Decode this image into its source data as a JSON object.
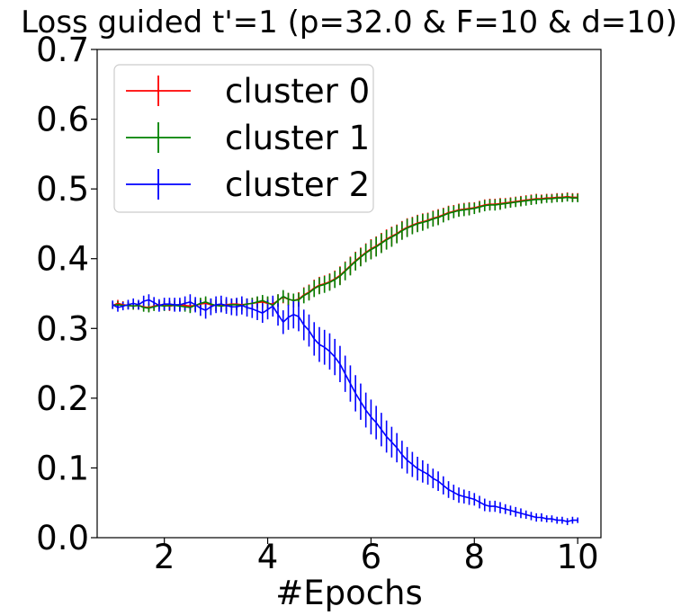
{
  "chart_data": {
    "type": "line",
    "title": "Loss guided t'=1  (p=32.0 & F=10 & d=10)",
    "xlabel": "#Epochs",
    "ylabel": "",
    "xlim": [
      0.7,
      10.45
    ],
    "ylim": [
      0.0,
      0.7
    ],
    "xticks": [
      2,
      4,
      6,
      8,
      10
    ],
    "yticks": [
      0.0,
      0.1,
      0.2,
      0.3,
      0.4,
      0.5,
      0.6,
      0.7
    ],
    "xtick_labels": [
      "2",
      "4",
      "6",
      "8",
      "10"
    ],
    "ytick_labels": [
      "0.0",
      "0.1",
      "0.2",
      "0.3",
      "0.4",
      "0.5",
      "0.6",
      "0.7"
    ],
    "grid": false,
    "legend_position": "top-left",
    "x": [
      1.0,
      1.1,
      1.2,
      1.3,
      1.4,
      1.5,
      1.6,
      1.7,
      1.8,
      1.9,
      2.0,
      2.1,
      2.2,
      2.3,
      2.4,
      2.5,
      2.6,
      2.7,
      2.8,
      2.9,
      3.0,
      3.1,
      3.2,
      3.3,
      3.4,
      3.5,
      3.6,
      3.7,
      3.8,
      3.9,
      4.0,
      4.1,
      4.2,
      4.3,
      4.4,
      4.5,
      4.6,
      4.7,
      4.8,
      4.9,
      5.0,
      5.1,
      5.2,
      5.3,
      5.4,
      5.5,
      5.6,
      5.7,
      5.8,
      5.9,
      6.0,
      6.1,
      6.2,
      6.3,
      6.4,
      6.5,
      6.6,
      6.7,
      6.8,
      6.9,
      7.0,
      7.1,
      7.2,
      7.3,
      7.4,
      7.5,
      7.6,
      7.7,
      7.8,
      7.9,
      8.0,
      8.1,
      8.2,
      8.3,
      8.4,
      8.5,
      8.6,
      8.7,
      8.8,
      8.9,
      9.0,
      9.1,
      9.2,
      9.3,
      9.4,
      9.5,
      9.6,
      9.7,
      9.8,
      9.9,
      10.0
    ],
    "series": [
      {
        "name": "cluster 0",
        "color": "#ff0000",
        "values": [
          0.333,
          0.336,
          0.334,
          0.333,
          0.332,
          0.333,
          0.331,
          0.33,
          0.332,
          0.334,
          0.333,
          0.332,
          0.333,
          0.334,
          0.333,
          0.332,
          0.333,
          0.335,
          0.336,
          0.334,
          0.333,
          0.333,
          0.334,
          0.335,
          0.335,
          0.334,
          0.335,
          0.336,
          0.337,
          0.338,
          0.336,
          0.335,
          0.34,
          0.345,
          0.342,
          0.34,
          0.342,
          0.348,
          0.352,
          0.358,
          0.362,
          0.364,
          0.367,
          0.371,
          0.376,
          0.383,
          0.39,
          0.397,
          0.403,
          0.409,
          0.414,
          0.418,
          0.423,
          0.428,
          0.432,
          0.436,
          0.441,
          0.445,
          0.448,
          0.451,
          0.453,
          0.455,
          0.458,
          0.46,
          0.463,
          0.466,
          0.468,
          0.47,
          0.471,
          0.472,
          0.473,
          0.475,
          0.477,
          0.478,
          0.478,
          0.479,
          0.48,
          0.481,
          0.482,
          0.483,
          0.484,
          0.485,
          0.486,
          0.486,
          0.487,
          0.487,
          0.488,
          0.488,
          0.489,
          0.488,
          0.488
        ],
        "errors": [
          0.005,
          0.005,
          0.005,
          0.005,
          0.005,
          0.006,
          0.006,
          0.006,
          0.006,
          0.006,
          0.007,
          0.007,
          0.007,
          0.007,
          0.007,
          0.008,
          0.008,
          0.008,
          0.008,
          0.008,
          0.008,
          0.008,
          0.008,
          0.008,
          0.008,
          0.008,
          0.008,
          0.008,
          0.008,
          0.008,
          0.009,
          0.009,
          0.009,
          0.009,
          0.009,
          0.01,
          0.01,
          0.011,
          0.011,
          0.012,
          0.012,
          0.012,
          0.012,
          0.012,
          0.013,
          0.013,
          0.013,
          0.013,
          0.013,
          0.013,
          0.014,
          0.014,
          0.014,
          0.014,
          0.014,
          0.013,
          0.013,
          0.013,
          0.012,
          0.012,
          0.012,
          0.011,
          0.011,
          0.011,
          0.01,
          0.01,
          0.009,
          0.009,
          0.009,
          0.009,
          0.008,
          0.008,
          0.008,
          0.008,
          0.008,
          0.008,
          0.007,
          0.007,
          0.007,
          0.007,
          0.007,
          0.007,
          0.007,
          0.006,
          0.006,
          0.006,
          0.006,
          0.006,
          0.006,
          0.006,
          0.006
        ]
      },
      {
        "name": "cluster 1",
        "color": "#008000",
        "values": [
          0.333,
          0.334,
          0.333,
          0.333,
          0.332,
          0.333,
          0.33,
          0.329,
          0.331,
          0.333,
          0.332,
          0.333,
          0.333,
          0.332,
          0.331,
          0.33,
          0.333,
          0.336,
          0.338,
          0.335,
          0.333,
          0.332,
          0.333,
          0.334,
          0.334,
          0.333,
          0.335,
          0.336,
          0.338,
          0.34,
          0.337,
          0.333,
          0.34,
          0.346,
          0.342,
          0.34,
          0.341,
          0.347,
          0.351,
          0.357,
          0.361,
          0.363,
          0.366,
          0.37,
          0.375,
          0.382,
          0.389,
          0.396,
          0.402,
          0.408,
          0.413,
          0.417,
          0.422,
          0.427,
          0.431,
          0.435,
          0.44,
          0.444,
          0.447,
          0.45,
          0.452,
          0.454,
          0.457,
          0.459,
          0.462,
          0.465,
          0.467,
          0.469,
          0.47,
          0.471,
          0.472,
          0.474,
          0.476,
          0.477,
          0.477,
          0.478,
          0.479,
          0.48,
          0.481,
          0.482,
          0.483,
          0.484,
          0.485,
          0.485,
          0.486,
          0.486,
          0.487,
          0.487,
          0.488,
          0.487,
          0.487
        ],
        "errors": [
          0.005,
          0.005,
          0.005,
          0.005,
          0.005,
          0.006,
          0.006,
          0.006,
          0.006,
          0.006,
          0.007,
          0.007,
          0.007,
          0.007,
          0.007,
          0.008,
          0.008,
          0.008,
          0.008,
          0.008,
          0.008,
          0.008,
          0.008,
          0.008,
          0.008,
          0.008,
          0.008,
          0.008,
          0.008,
          0.008,
          0.009,
          0.009,
          0.009,
          0.009,
          0.009,
          0.01,
          0.01,
          0.011,
          0.011,
          0.012,
          0.012,
          0.012,
          0.012,
          0.012,
          0.013,
          0.013,
          0.013,
          0.013,
          0.013,
          0.013,
          0.014,
          0.014,
          0.014,
          0.014,
          0.014,
          0.013,
          0.013,
          0.013,
          0.012,
          0.012,
          0.012,
          0.011,
          0.011,
          0.011,
          0.01,
          0.01,
          0.009,
          0.009,
          0.009,
          0.009,
          0.008,
          0.008,
          0.008,
          0.008,
          0.008,
          0.008,
          0.007,
          0.007,
          0.007,
          0.007,
          0.007,
          0.007,
          0.007,
          0.006,
          0.006,
          0.006,
          0.006,
          0.006,
          0.006,
          0.006,
          0.006
        ]
      },
      {
        "name": "cluster 2",
        "color": "#0000ff",
        "values": [
          0.334,
          0.33,
          0.332,
          0.334,
          0.336,
          0.334,
          0.339,
          0.341,
          0.337,
          0.333,
          0.335,
          0.335,
          0.334,
          0.334,
          0.336,
          0.338,
          0.334,
          0.329,
          0.326,
          0.331,
          0.334,
          0.335,
          0.333,
          0.331,
          0.331,
          0.333,
          0.33,
          0.328,
          0.325,
          0.322,
          0.327,
          0.332,
          0.32,
          0.309,
          0.316,
          0.32,
          0.317,
          0.305,
          0.297,
          0.285,
          0.277,
          0.273,
          0.267,
          0.259,
          0.249,
          0.235,
          0.221,
          0.207,
          0.195,
          0.183,
          0.173,
          0.165,
          0.155,
          0.145,
          0.137,
          0.129,
          0.119,
          0.111,
          0.105,
          0.099,
          0.095,
          0.091,
          0.085,
          0.081,
          0.075,
          0.069,
          0.065,
          0.061,
          0.059,
          0.057,
          0.055,
          0.051,
          0.047,
          0.045,
          0.045,
          0.043,
          0.041,
          0.039,
          0.037,
          0.035,
          0.033,
          0.031,
          0.029,
          0.029,
          0.027,
          0.027,
          0.025,
          0.025,
          0.023,
          0.025,
          0.025
        ],
        "errors": [
          0.006,
          0.006,
          0.006,
          0.007,
          0.007,
          0.007,
          0.008,
          0.008,
          0.008,
          0.009,
          0.009,
          0.009,
          0.01,
          0.01,
          0.01,
          0.011,
          0.011,
          0.011,
          0.012,
          0.012,
          0.012,
          0.012,
          0.012,
          0.012,
          0.013,
          0.013,
          0.013,
          0.013,
          0.013,
          0.014,
          0.014,
          0.015,
          0.016,
          0.017,
          0.018,
          0.02,
          0.021,
          0.022,
          0.023,
          0.024,
          0.025,
          0.025,
          0.026,
          0.026,
          0.026,
          0.026,
          0.026,
          0.026,
          0.026,
          0.025,
          0.025,
          0.024,
          0.024,
          0.023,
          0.022,
          0.021,
          0.02,
          0.019,
          0.018,
          0.017,
          0.016,
          0.015,
          0.014,
          0.014,
          0.013,
          0.012,
          0.011,
          0.011,
          0.01,
          0.01,
          0.009,
          0.009,
          0.009,
          0.008,
          0.008,
          0.008,
          0.007,
          0.007,
          0.007,
          0.007,
          0.006,
          0.006,
          0.006,
          0.006,
          0.005,
          0.005,
          0.005,
          0.005,
          0.005,
          0.005,
          0.004
        ]
      }
    ]
  }
}
